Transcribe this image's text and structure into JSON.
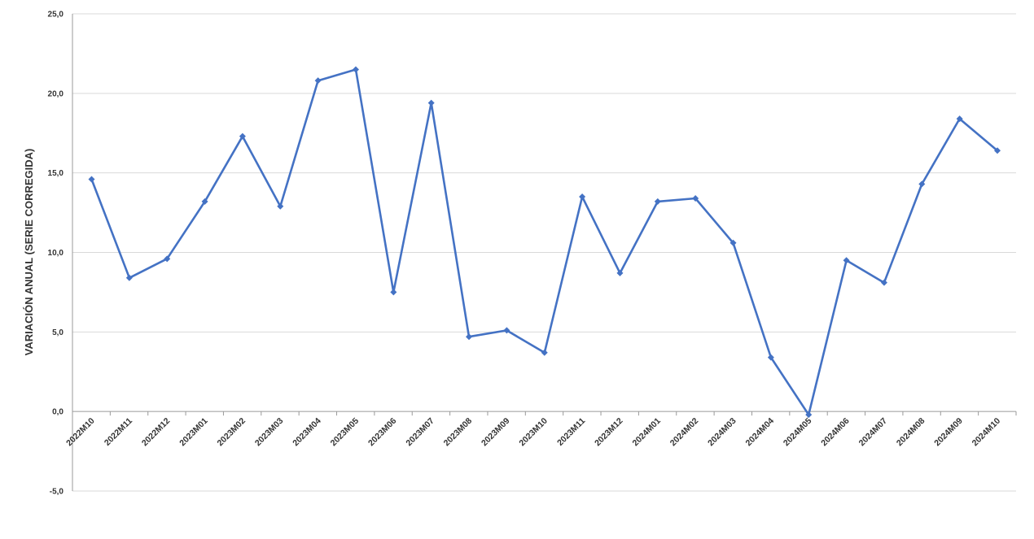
{
  "chart_data": {
    "type": "line",
    "ylabel": "VARIACIÓN ANUAL (SERIE CORREGIDA)",
    "xlabel": "",
    "ylim": [
      -5,
      25
    ],
    "yticks": [
      -5,
      0,
      5,
      10,
      15,
      20,
      25
    ],
    "ytick_labels": [
      "-5,0",
      "0,0",
      "5,0",
      "10,0",
      "15,0",
      "20,0",
      "25,0"
    ],
    "grid": true,
    "legend": "none",
    "categories": [
      "2022M10",
      "2022M11",
      "2022M12",
      "2023M01",
      "2023M02",
      "2023M03",
      "2023M04",
      "2023M05",
      "2023M06",
      "2023M07",
      "2023M08",
      "2023M09",
      "2023M10",
      "2023M11",
      "2023M12",
      "2024M01",
      "2024M02",
      "2024M03",
      "2024M04",
      "2024M05",
      "2024M06",
      "2024M07",
      "2024M08",
      "2024M09",
      "2024M10"
    ],
    "series": [
      {
        "color": "#4472c4",
        "marker": "diamond",
        "values": [
          14.6,
          8.4,
          9.6,
          13.2,
          17.3,
          12.9,
          20.8,
          21.5,
          7.5,
          19.4,
          4.7,
          5.1,
          3.7,
          13.5,
          8.7,
          13.2,
          13.4,
          10.6,
          3.4,
          -0.2,
          9.5,
          8.1,
          14.3,
          18.4,
          16.4
        ]
      }
    ]
  }
}
